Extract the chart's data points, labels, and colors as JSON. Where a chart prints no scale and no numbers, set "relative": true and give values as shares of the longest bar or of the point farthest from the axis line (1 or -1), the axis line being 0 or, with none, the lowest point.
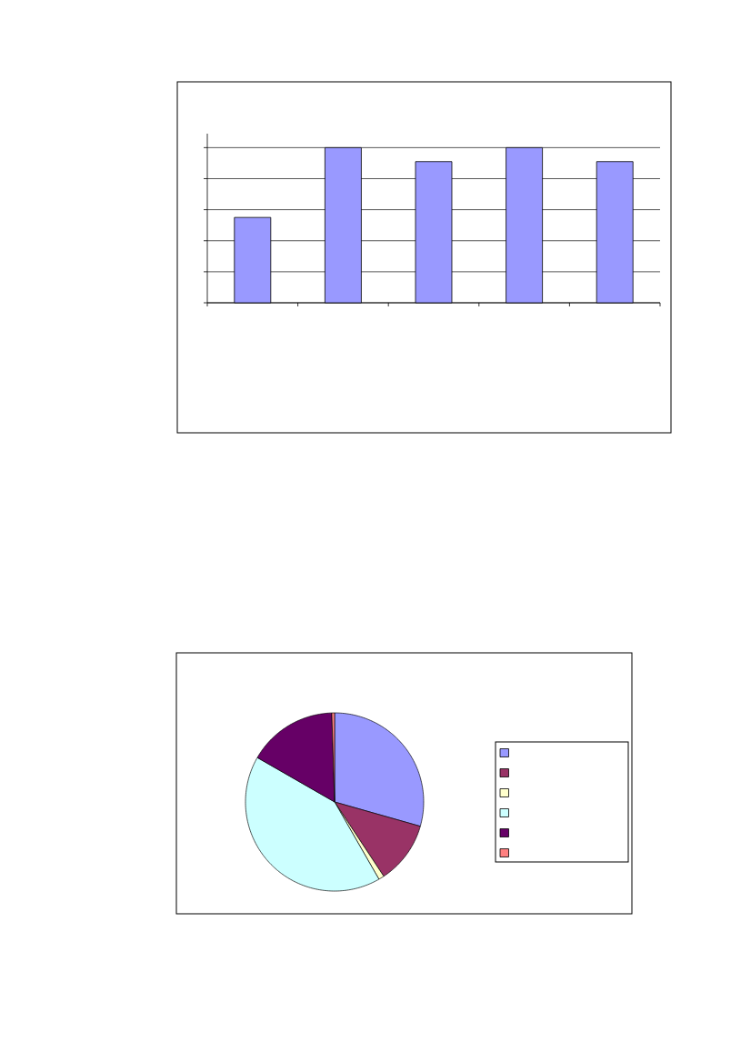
{
  "chart_data": [
    {
      "type": "bar",
      "categories": [
        null,
        null,
        null,
        null,
        null
      ],
      "values": [
        0.55,
        1,
        0.91,
        1,
        0.91
      ],
      "color": "#9999ff",
      "relative": true,
      "grid": "y"
    },
    {
      "type": "pie",
      "categories": [
        null,
        null,
        null,
        null,
        null,
        null
      ],
      "values": [
        29.4,
        11.3,
        1.0,
        41.6,
        16.2,
        0.5
      ],
      "colors": [
        "#9999ff",
        "#993366",
        "#ffffcc",
        "#ccffff",
        "#660066",
        "#ff8080"
      ]
    }
  ]
}
